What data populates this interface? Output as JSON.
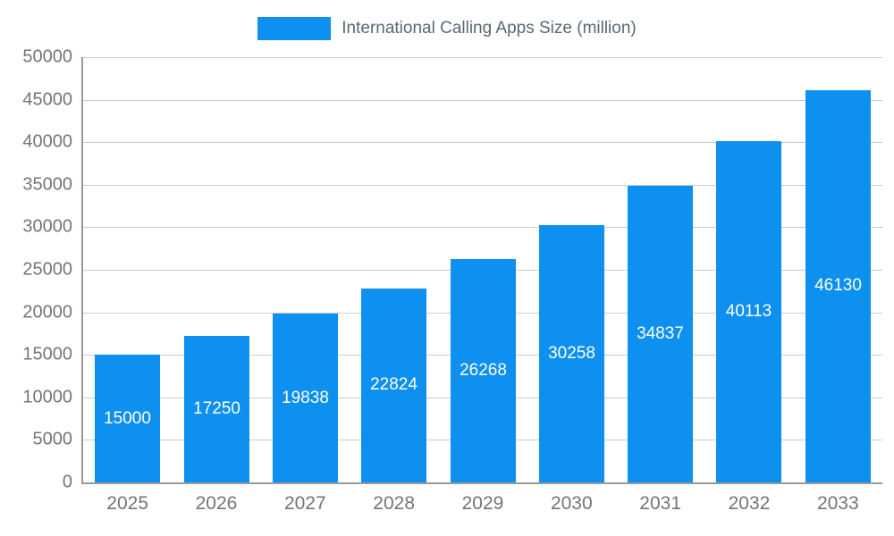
{
  "legend": {
    "label": "International Calling Apps Size (million)"
  },
  "chart_data": {
    "type": "bar",
    "title": "International Calling Apps Size (million)",
    "categories": [
      "2025",
      "2026",
      "2027",
      "2028",
      "2029",
      "2030",
      "2031",
      "2032",
      "2033"
    ],
    "values": [
      15000,
      17250,
      19838,
      22824,
      26268,
      30258,
      34837,
      40113,
      46130
    ],
    "value_labels": [
      "15000",
      "17250",
      "19838",
      "22824",
      "26268",
      "30258",
      "34837",
      "40113",
      "46130"
    ],
    "xlabel": "",
    "ylabel": "",
    "ylim": [
      0,
      50000
    ],
    "ytick_step": 5000,
    "yticks": [
      0,
      5000,
      10000,
      15000,
      20000,
      25000,
      30000,
      35000,
      40000,
      45000,
      50000
    ],
    "grid": true,
    "legend_position": "top"
  },
  "colors": {
    "bar": "#0E90F0",
    "bar_label": "#ffffff",
    "grid_line": "#cccccc",
    "axis_line": "#999999",
    "tick_text": "#757575",
    "legend_text": "#5a6872",
    "background": "#ffffff"
  }
}
